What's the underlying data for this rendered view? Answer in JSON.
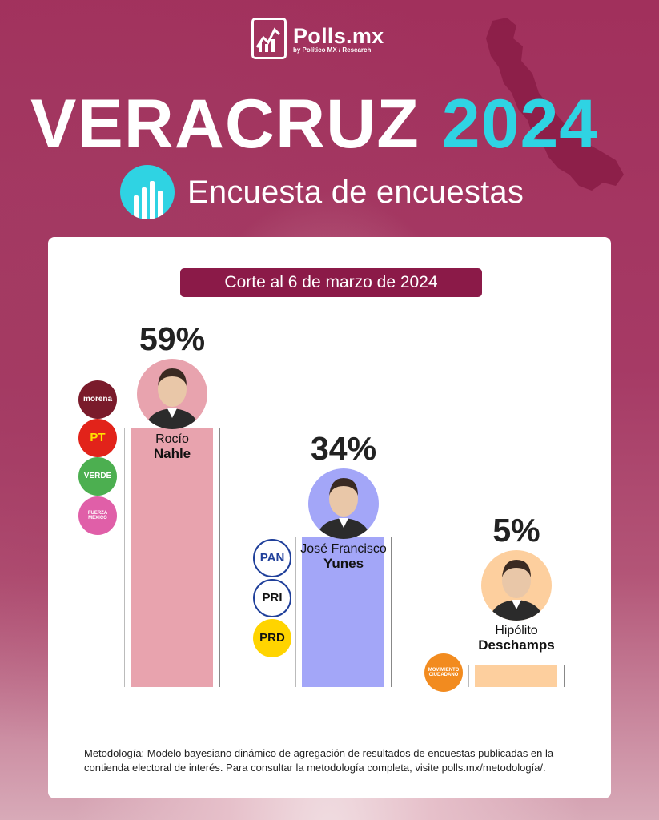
{
  "brand": {
    "name": "Polls.mx",
    "byline": "by Político MX / Research"
  },
  "headline": {
    "state": "VERACRUZ",
    "year": "2024"
  },
  "subtitle": "Encuesta de encuestas",
  "cutoff": "Corte al 6 de marzo de 2024",
  "chart_data": {
    "type": "bar",
    "categories": [
      "Rocío Nahle",
      "José Francisco Yunes",
      "Hipólito Deschamps"
    ],
    "values": [
      59,
      34,
      5
    ],
    "unit": "%",
    "colors": [
      "#e8a3ae",
      "#a3a6f8",
      "#fdcf9e"
    ],
    "ylim": [
      0,
      100
    ]
  },
  "candidates": [
    {
      "first": "Rocío",
      "last": "Nahle",
      "pct_label": "59%",
      "bar_color": "#e8a3ae",
      "ring": "#e8a3ae",
      "parties": [
        {
          "label": "morena",
          "color": "#7a1b2b",
          "text": "#ffffff"
        },
        {
          "label": "PT",
          "color": "#e2231a",
          "text": "#ffe100"
        },
        {
          "label": "VERDE",
          "color": "#4caf50",
          "text": "#ffffff"
        },
        {
          "label": "FUERZA MÉXICO",
          "color": "#e05fa8",
          "text": "#ffffff"
        }
      ]
    },
    {
      "first": "José Francisco",
      "last": "Yunes",
      "pct_label": "34%",
      "bar_color": "#a3a6f8",
      "ring": "#a3a6f8",
      "parties": [
        {
          "label": "PAN",
          "color": "#ffffff",
          "text": "#1f3f9a"
        },
        {
          "label": "PRI",
          "color": "#ffffff",
          "text": "#111111"
        },
        {
          "label": "PRD",
          "color": "#ffd400",
          "text": "#111111"
        }
      ]
    },
    {
      "first": "Hipólito",
      "last": "Deschamps",
      "pct_label": "5%",
      "bar_color": "#fdcf9e",
      "ring": "#fdcf9e",
      "parties": [
        {
          "label": "MOVIMIENTO CIUDADANO",
          "color": "#f28b1f",
          "text": "#ffffff"
        }
      ]
    }
  ],
  "methodology": "Metodología: Modelo bayesiano dinámico de agregación de resultados de encuestas publicadas en la contienda electoral de interés. Para consultar la metodología completa, visite polls.mx/metodología/."
}
